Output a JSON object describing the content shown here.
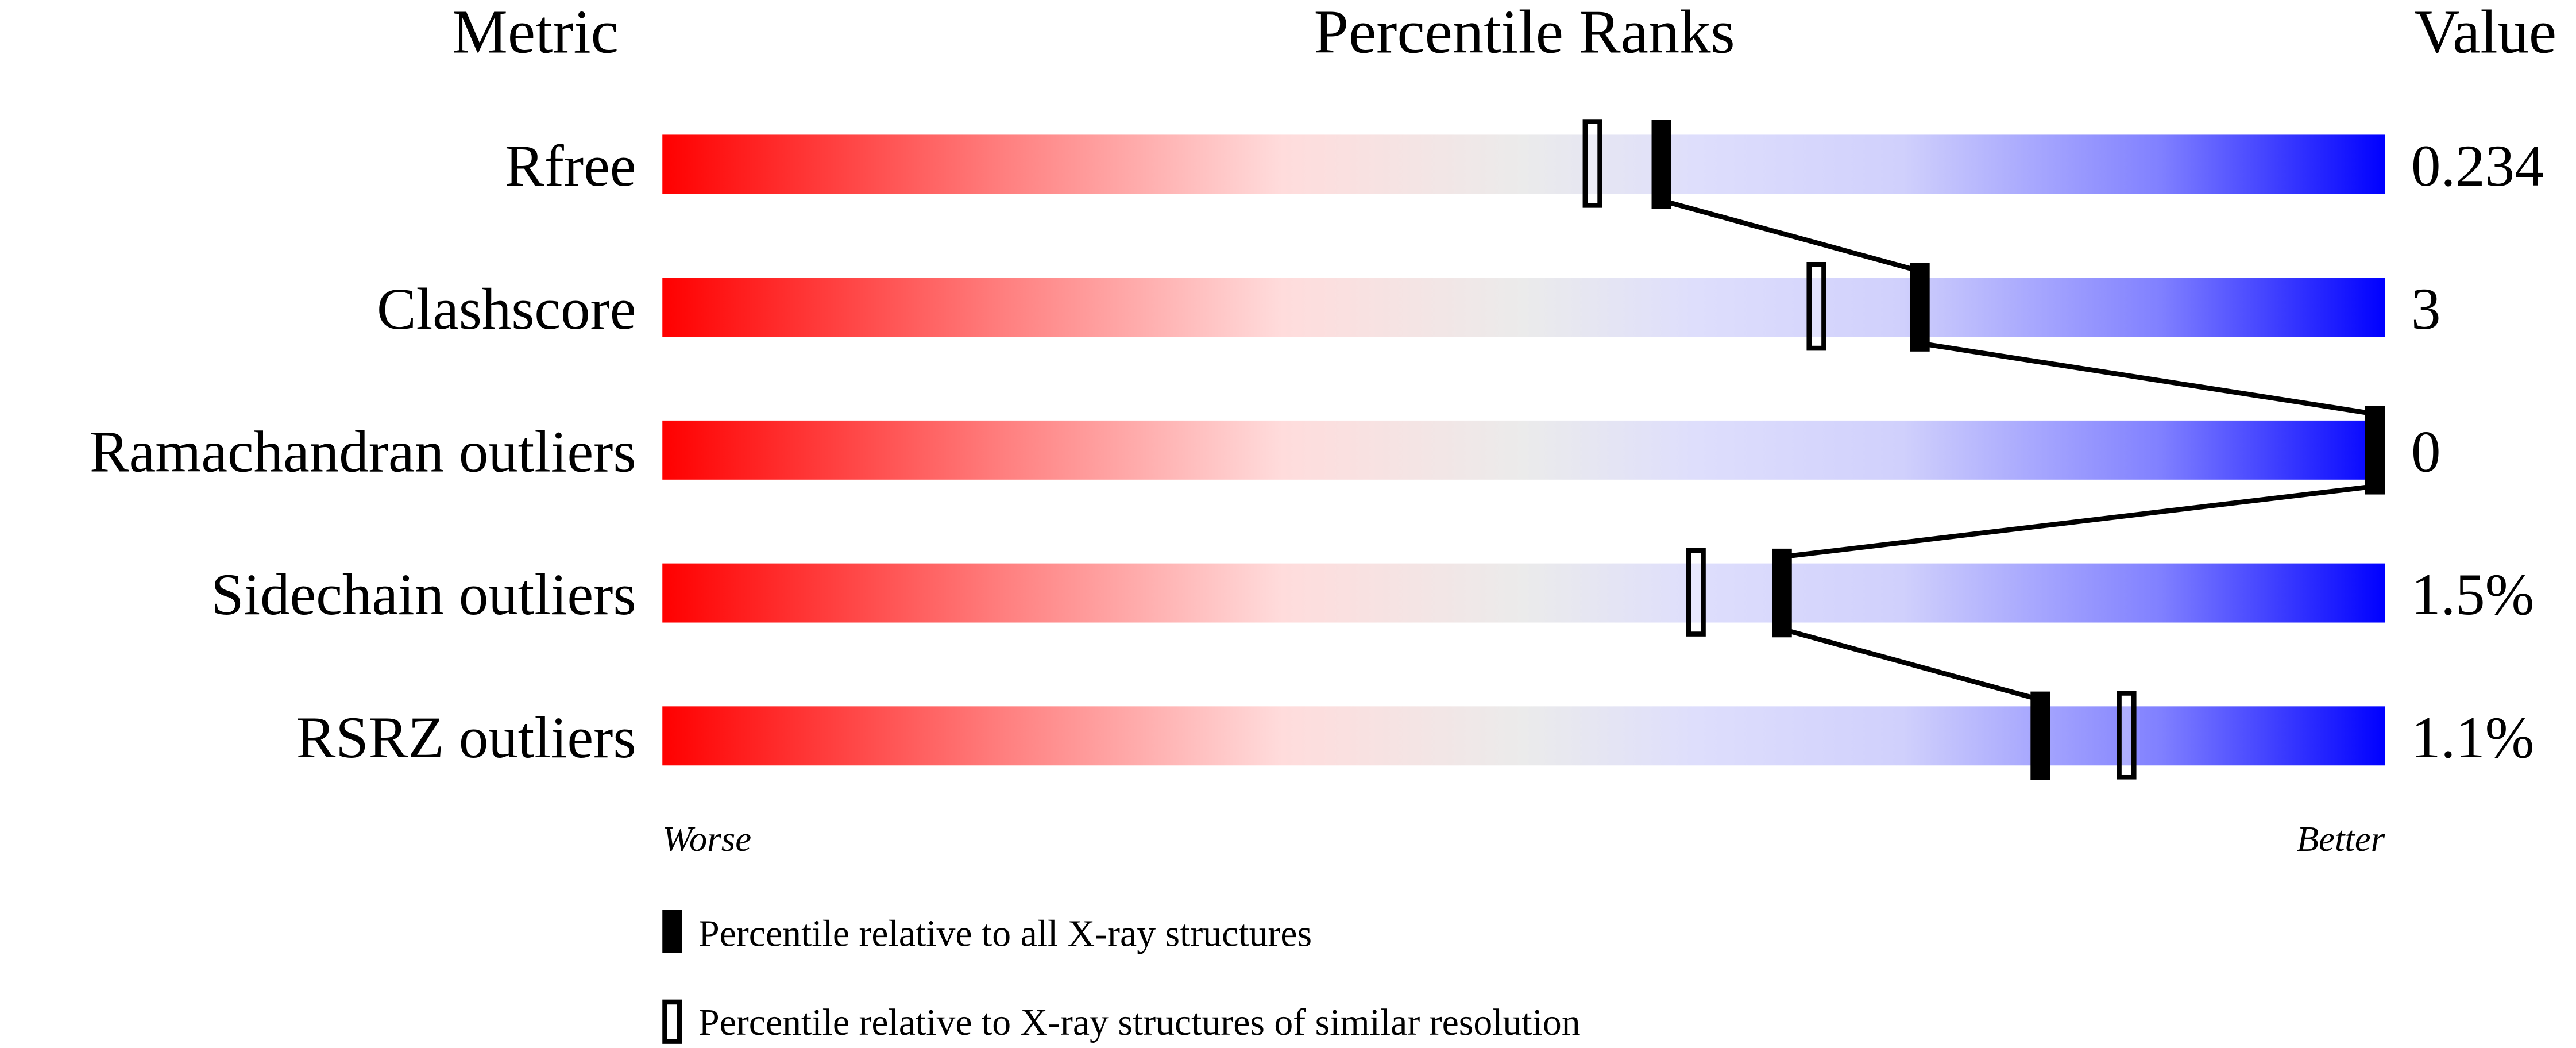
{
  "chart_data": {
    "type": "percentile-bar",
    "headers": {
      "metric": "Metric",
      "ranks": "Percentile Ranks",
      "value": "Value"
    },
    "xlim": [
      0,
      100
    ],
    "metrics": [
      {
        "name": "Rfree",
        "value": "0.234",
        "percentile_all": 58,
        "percentile_similar": 54
      },
      {
        "name": "Clashscore",
        "value": "3",
        "percentile_all": 73,
        "percentile_similar": 67
      },
      {
        "name": "Ramachandran outliers",
        "value": "0",
        "percentile_all": 100,
        "percentile_similar": 100
      },
      {
        "name": "Sidechain outliers",
        "value": "1.5%",
        "percentile_all": 65,
        "percentile_similar": 60
      },
      {
        "name": "RSRZ outliers",
        "value": "1.1%",
        "percentile_all": 80,
        "percentile_similar": 85
      }
    ],
    "axis_labels": {
      "worse": "Worse",
      "better": "Better"
    },
    "legend": {
      "filled": "Percentile relative to all X-ray structures",
      "open": "Percentile relative to X-ray structures of similar resolution"
    },
    "gradient_colors": [
      "#ff0000",
      "#ff8080",
      "#ffdddd",
      "#ebebeb",
      "#dcdcfc",
      "#d0d0fc",
      "#8080ff",
      "#0000ff"
    ]
  }
}
